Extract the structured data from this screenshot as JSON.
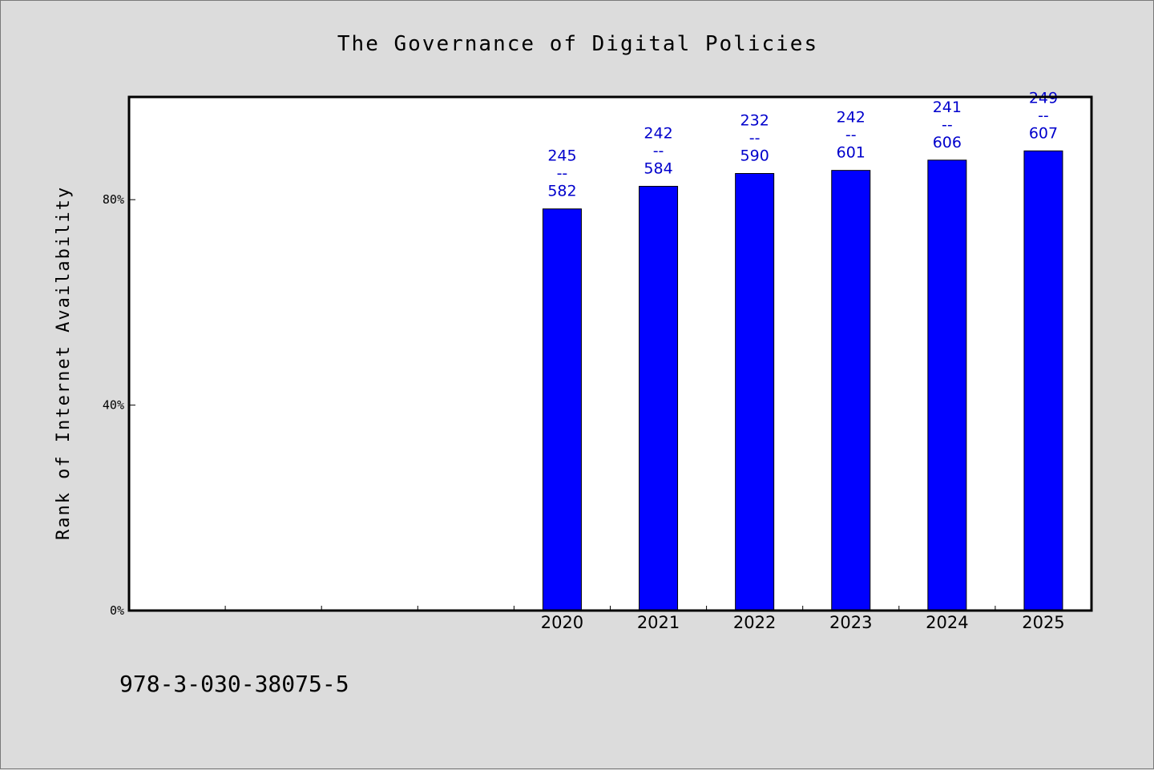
{
  "chart_data": {
    "type": "bar",
    "title": "The Governance of Digital Policies",
    "xlabel": "",
    "ylabel": "Rank of Internet Availability",
    "categories": [
      "",
      "",
      "",
      "",
      "2020",
      "2021",
      "2022",
      "2023",
      "2024",
      "2025"
    ],
    "values": [
      null,
      null,
      null,
      null,
      78.2,
      82.6,
      85.1,
      85.7,
      87.7,
      89.5
    ],
    "data_labels": [
      null,
      null,
      null,
      null,
      [
        "245",
        "--",
        "582"
      ],
      [
        "242",
        "--",
        "584"
      ],
      [
        "232",
        "--",
        "590"
      ],
      [
        "242",
        "--",
        "601"
      ],
      [
        "241",
        "--",
        "606"
      ],
      [
        "249",
        "--",
        "607"
      ]
    ],
    "ylim": [
      0,
      100
    ],
    "yticks": [
      0,
      40,
      80
    ],
    "ytick_labels": [
      "0%",
      "40%",
      "80%"
    ],
    "grid": false,
    "bar_color": "#0000ff",
    "label_color": "#0000cc"
  },
  "footer": "978-3-030-38075-5"
}
